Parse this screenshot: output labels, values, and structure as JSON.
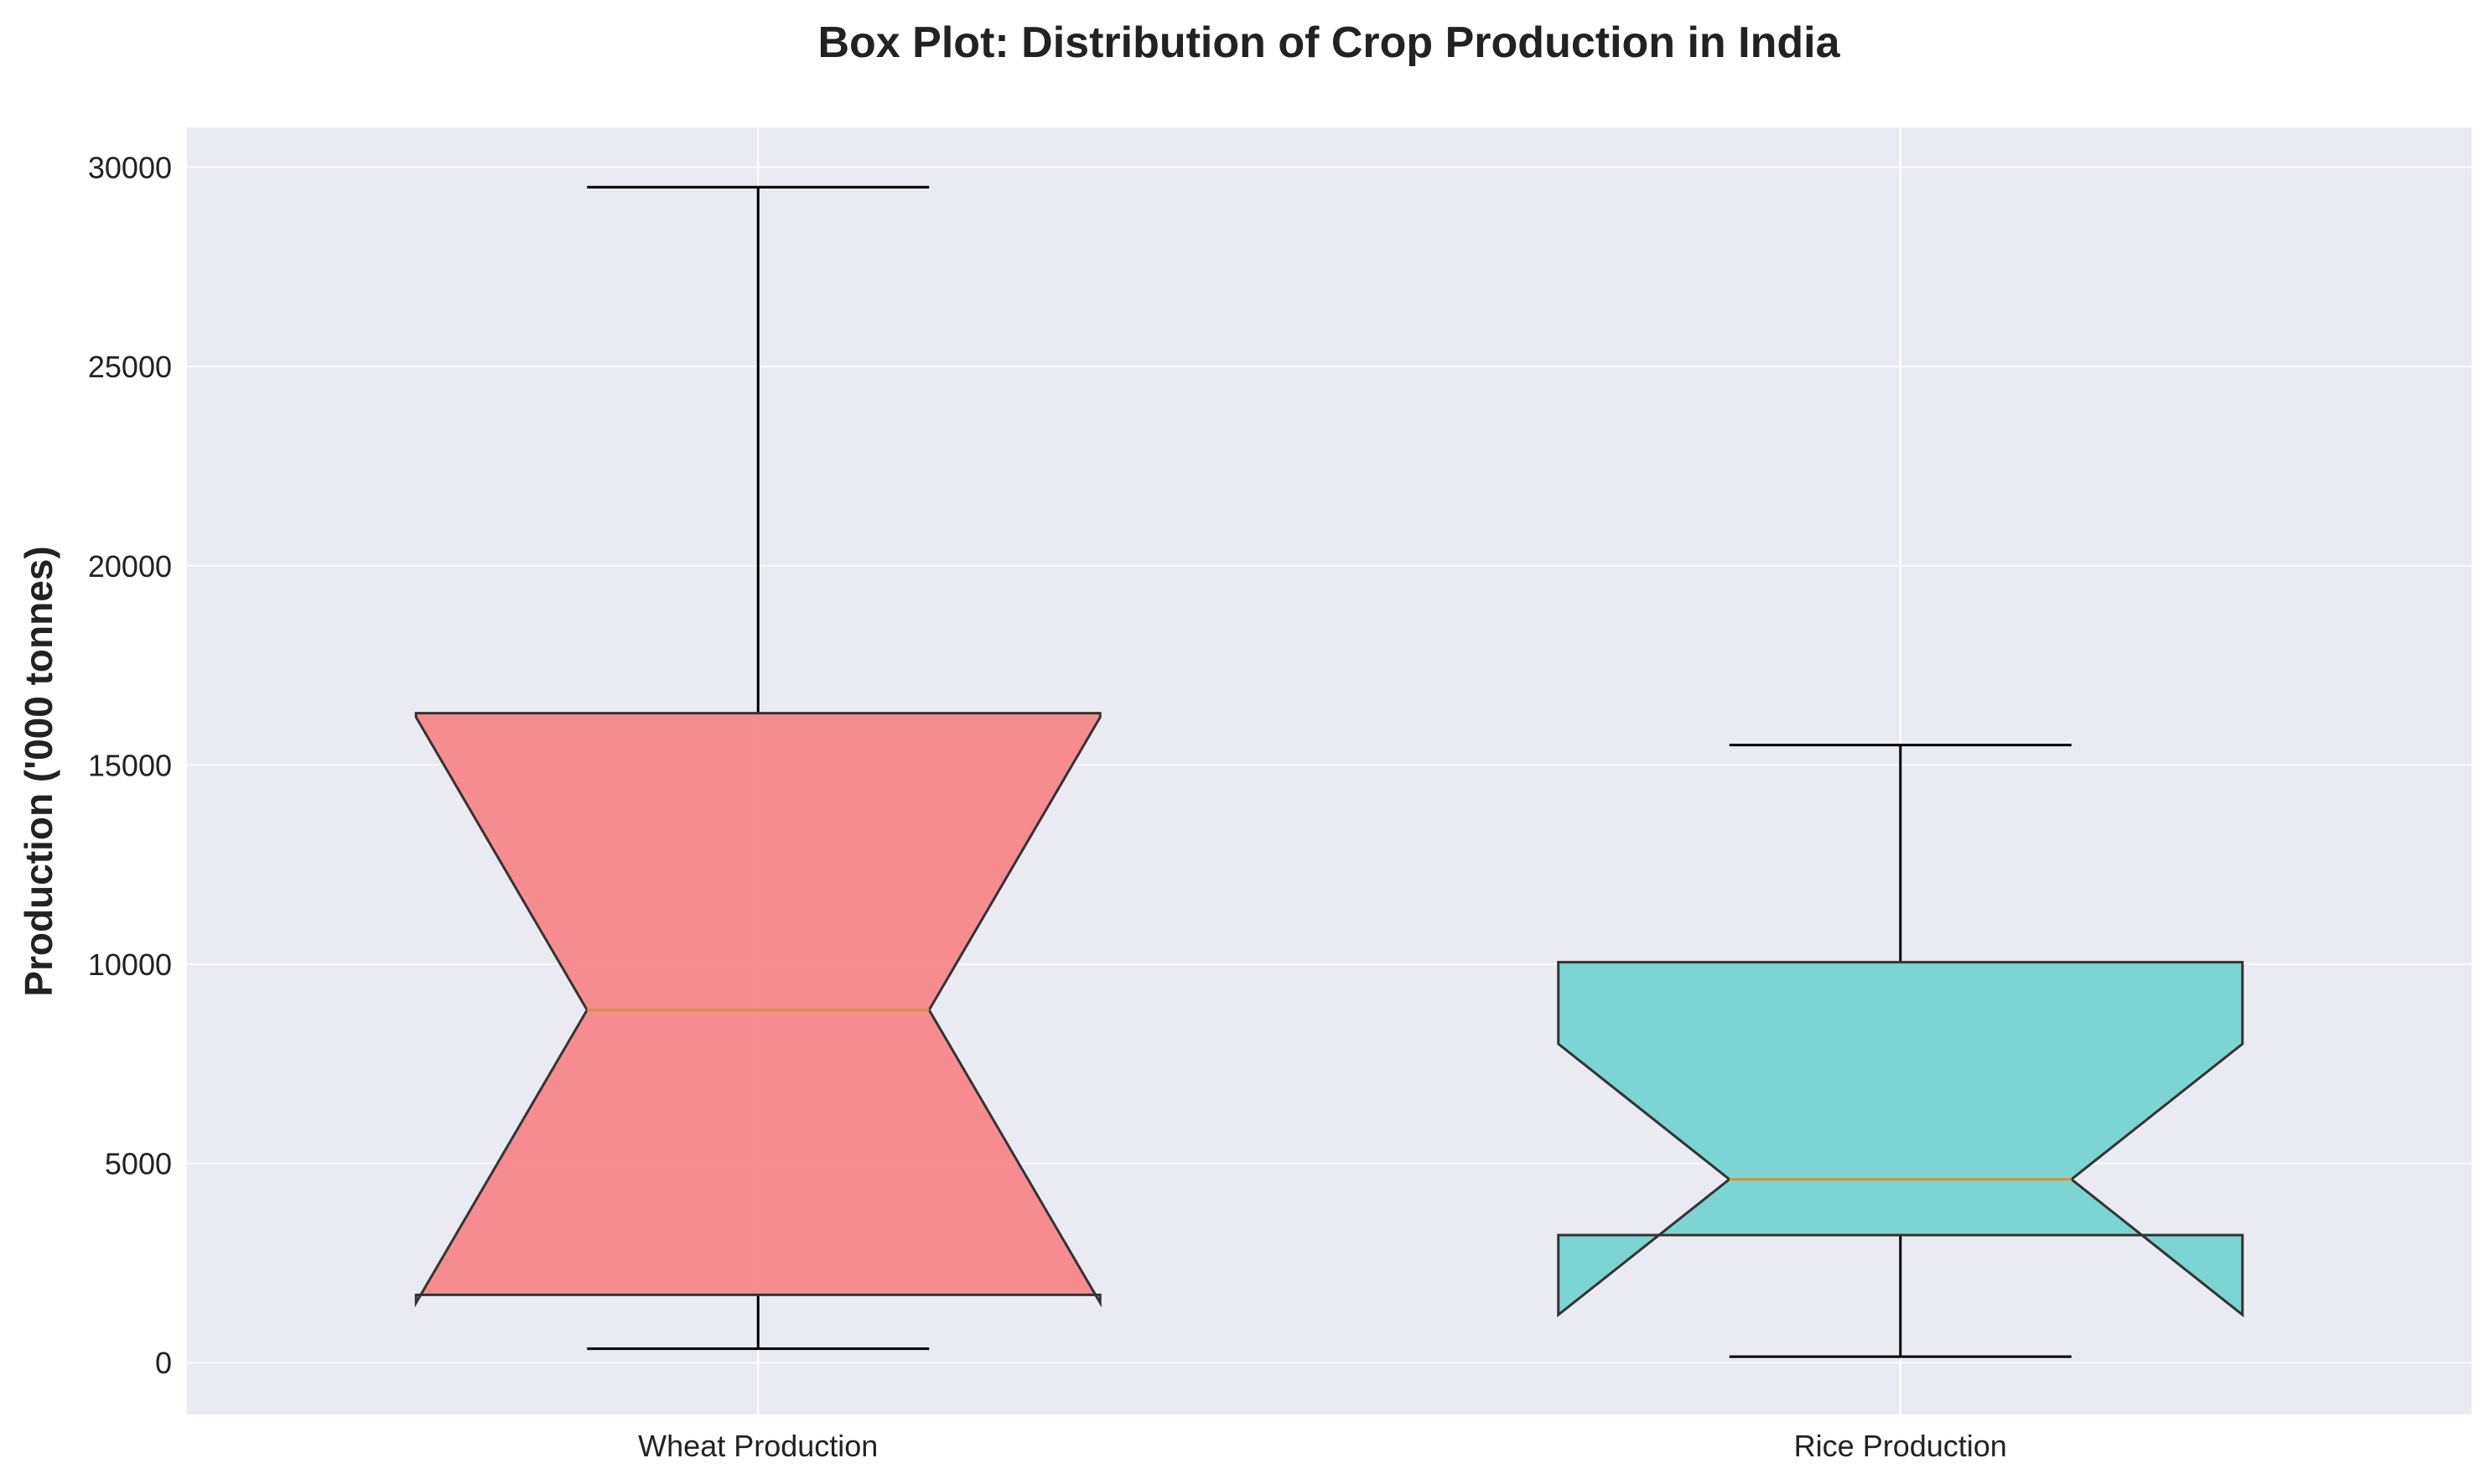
{
  "chart_data": {
    "type": "box",
    "title": "Box Plot: Distribution of Crop Production in India",
    "xlabel": "",
    "ylabel": "Production ('000 tonnes)",
    "ylim": [
      -1300,
      31000
    ],
    "yticks": [
      0,
      5000,
      10000,
      15000,
      20000,
      25000,
      30000
    ],
    "grid": true,
    "notched": true,
    "categories": [
      "Wheat Production",
      "Rice Production"
    ],
    "series": [
      {
        "name": "Wheat Production",
        "whisker_low": 350,
        "q1": 1700,
        "median": 8850,
        "q3": 16300,
        "whisker_high": 29500,
        "notch_low": 1500,
        "notch_high": 16200,
        "color": "#F7878A"
      },
      {
        "name": "Rice Production",
        "whisker_low": 150,
        "q1": 3200,
        "median": 4600,
        "q3": 10050,
        "whisker_high": 15500,
        "notch_low": 1200,
        "notch_high": 8000,
        "color": "#76D4D0"
      }
    ],
    "colors": {
      "plot_background": "#EAEAF2",
      "grid": "#FFFFFF",
      "median": "#D4913A",
      "box_edge": "#333333",
      "whisker": "#000000"
    }
  }
}
